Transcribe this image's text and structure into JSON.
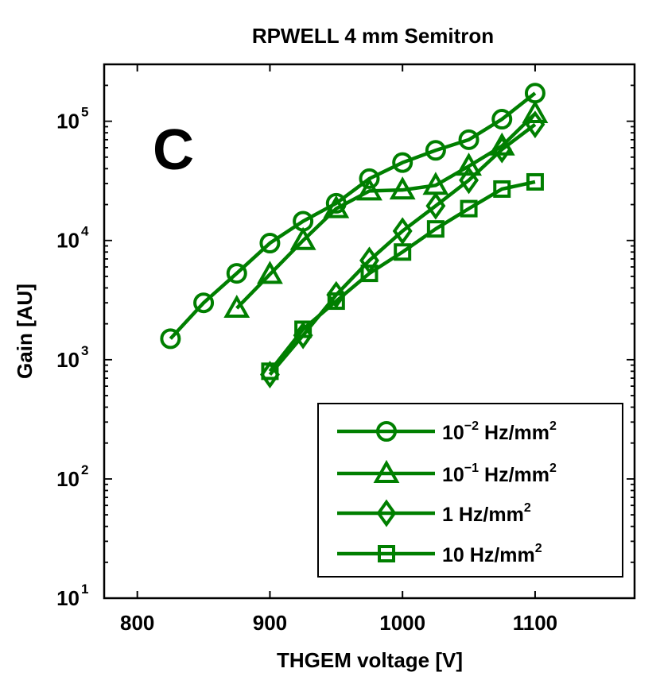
{
  "chart_data": {
    "type": "line",
    "title": "RPWELL 4 mm Semitron",
    "panel_label": "C",
    "xlabel": "THGEM voltage [V]",
    "ylabel": "Gain [AU]",
    "xlim": [
      775,
      1175
    ],
    "ylim": [
      10,
      300000
    ],
    "yscale": "log",
    "xticks": [
      800,
      900,
      1000,
      1100
    ],
    "xtick_labels": [
      "800",
      "900",
      "1000",
      "1100"
    ],
    "yticks": [
      10,
      100,
      1000,
      10000,
      100000
    ],
    "ytick_labels": [
      {
        "base": "10",
        "exp": "1"
      },
      {
        "base": "10",
        "exp": "2"
      },
      {
        "base": "10",
        "exp": "3"
      },
      {
        "base": "10",
        "exp": "4"
      },
      {
        "base": "10",
        "exp": "5"
      }
    ],
    "grid": false,
    "legend_position": "bottom-right",
    "color": "#007f00",
    "series": [
      {
        "name": "10^-2 Hz/mm^2",
        "legend": {
          "base": "10",
          "exp": "−2",
          "unit": " Hz/mm",
          "unit_exp": "2"
        },
        "marker": "circle",
        "x": [
          825,
          850,
          875,
          900,
          925,
          950,
          975,
          1000,
          1025,
          1050,
          1075,
          1100
        ],
        "y": [
          1500,
          3000,
          5300,
          9500,
          14500,
          20500,
          33000,
          45000,
          57000,
          70000,
          104000,
          172000
        ]
      },
      {
        "name": "10^-1 Hz/mm^2",
        "legend": {
          "base": "10",
          "exp": "−1",
          "unit": " Hz/mm",
          "unit_exp": "2"
        },
        "marker": "triangle",
        "x": [
          875,
          900,
          925,
          950,
          975,
          1000,
          1025,
          1050,
          1075,
          1100
        ],
        "y": [
          2700,
          5200,
          10000,
          18500,
          26000,
          26500,
          29000,
          42000,
          62000,
          116000
        ]
      },
      {
        "name": "1 Hz/mm^2",
        "legend": {
          "base": "1",
          "exp": "",
          "unit": " Hz/mm",
          "unit_exp": "2"
        },
        "marker": "diamond",
        "x": [
          900,
          925,
          950,
          975,
          1000,
          1025,
          1050,
          1075,
          1100
        ],
        "y": [
          750,
          1600,
          3500,
          6800,
          12000,
          19500,
          32000,
          58000,
          94000
        ]
      },
      {
        "name": "10 Hz/mm^2",
        "legend": {
          "base": "10",
          "exp": "",
          "unit": " Hz/mm",
          "unit_exp": "2"
        },
        "marker": "square",
        "x": [
          900,
          925,
          950,
          975,
          1000,
          1025,
          1050,
          1075,
          1100
        ],
        "y": [
          800,
          1800,
          3100,
          5300,
          8000,
          12500,
          18500,
          27000,
          31000
        ]
      }
    ]
  }
}
